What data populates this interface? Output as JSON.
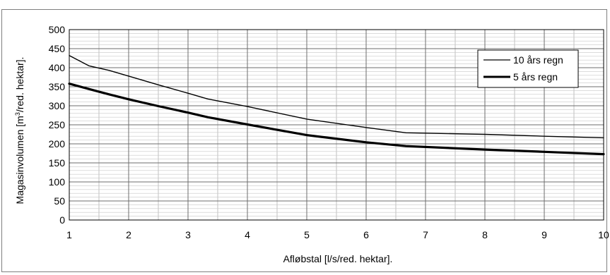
{
  "chart_data": {
    "type": "line",
    "xlabel": "Afløbstal [l/s/red. hektar].",
    "ylabel_parts": [
      "Magasinvolumen [m",
      "3",
      "/red. hektar]."
    ],
    "xlim": [
      1,
      10
    ],
    "ylim": [
      0,
      500
    ],
    "x_ticks": [
      1,
      2,
      3,
      4,
      5,
      6,
      7,
      8,
      9,
      10
    ],
    "y_ticks": [
      0,
      50,
      100,
      150,
      200,
      250,
      300,
      350,
      400,
      450,
      500
    ],
    "x_minor_step": 0.5,
    "y_minor_step": 10,
    "grid": true,
    "legend_position": "top-right",
    "series": [
      {
        "name": "10 års regn",
        "color": "#000000",
        "weight": "thin",
        "x": [
          1,
          1.33,
          1.67,
          2,
          2.5,
          3,
          3.33,
          4,
          5,
          6,
          6.67,
          8,
          9,
          10
        ],
        "y": [
          432,
          405,
          393,
          378,
          355,
          333,
          318,
          298,
          265,
          243,
          229,
          225,
          220,
          216
        ]
      },
      {
        "name": "5 års regn",
        "color": "#000000",
        "weight": "thick",
        "x": [
          1,
          1.33,
          1.67,
          2,
          2.5,
          3,
          3.33,
          4,
          5,
          6,
          6.67,
          8,
          9,
          10
        ],
        "y": [
          358,
          344,
          330,
          317,
          299,
          282,
          270,
          251,
          223,
          204,
          194,
          185,
          179,
          173
        ]
      }
    ]
  }
}
